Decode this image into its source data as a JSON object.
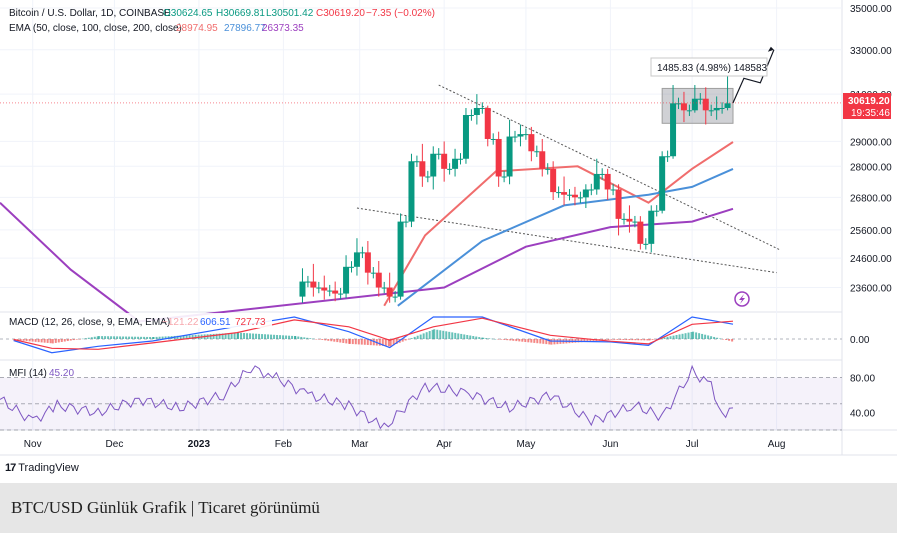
{
  "header": {
    "symbol_line": "Bitcoin / U.S. Dollar, 1D, COINBASE",
    "ohlc": {
      "o": "O30624.65",
      "h": "H30669.81",
      "l": "L30501.42",
      "c": "C30619.20",
      "chg": "−7.35 (−0.02%)"
    },
    "ema_label": "EMA (50, close, 100, close, 200, close)",
    "ema_values": [
      "28974.95",
      "27896.77",
      "26373.35"
    ]
  },
  "macd": {
    "label": "MACD (12, 26, close, 9, EMA, EMA)",
    "values": [
      "−121.22",
      "606.51",
      "727.73"
    ],
    "zero_label": "0.00"
  },
  "mfi": {
    "label": "MFI (14)",
    "value": "45.20",
    "levels": [
      "80.00",
      "40.00"
    ]
  },
  "price_axis": {
    "ticks": [
      "35000.00",
      "33000.00",
      "31000.00",
      "29000.00",
      "28000.00",
      "26800.00",
      "25600.00",
      "24600.00",
      "23600.00"
    ]
  },
  "last_price": {
    "price": "30619.20",
    "countdown": "19:35:46"
  },
  "range_box": {
    "label": "1485.83 (4.98%) 148583"
  },
  "time_axis": {
    "ticks": [
      "Nov",
      "Dec",
      "2023",
      "Feb",
      "Mar",
      "Apr",
      "May",
      "Jun",
      "Jul",
      "Aug"
    ]
  },
  "branding": {
    "logo_text": "TradingView"
  },
  "caption": "BTC/USD Günlük Grafik | Ticaret görünümü",
  "colors": {
    "up": "#089981",
    "down": "#f23645",
    "ema50": "#f06d6d",
    "ema100": "#4a90d9",
    "ema200": "#9c3fbf",
    "macd": "#2962ff",
    "signal": "#f23645",
    "mfi": "#7e57c2",
    "box": "#9e9e9e"
  },
  "chart_data": {
    "type": "candlestick",
    "title": "",
    "xlabel": "",
    "ylabel": "",
    "x_dates": [
      "2023-02-08",
      "2023-02-12",
      "2023-02-16",
      "2023-02-20",
      "2023-02-24",
      "2023-02-28",
      "2023-03-04",
      "2023-03-08",
      "2023-03-12",
      "2023-03-16",
      "2023-03-20",
      "2023-03-24",
      "2023-03-28",
      "2023-04-01",
      "2023-04-05",
      "2023-04-09",
      "2023-04-13",
      "2023-04-17",
      "2023-04-21",
      "2023-04-25",
      "2023-04-29",
      "2023-05-03",
      "2023-05-07",
      "2023-05-11",
      "2023-05-15",
      "2023-05-19",
      "2023-05-23",
      "2023-05-27",
      "2023-05-31",
      "2023-06-04",
      "2023-06-08",
      "2023-06-12",
      "2023-06-16",
      "2023-06-20",
      "2023-06-24",
      "2023-06-28",
      "2023-07-02",
      "2023-07-06",
      "2023-07-10",
      "2023-07-14"
    ],
    "candles": [
      {
        "o": 23300,
        "h": 24250,
        "l": 23100,
        "c": 23800
      },
      {
        "o": 23800,
        "h": 24400,
        "l": 23300,
        "c": 23600
      },
      {
        "o": 23600,
        "h": 24000,
        "l": 23200,
        "c": 23500
      },
      {
        "o": 23500,
        "h": 23800,
        "l": 23150,
        "c": 23400
      },
      {
        "o": 23400,
        "h": 24700,
        "l": 23250,
        "c": 24300
      },
      {
        "o": 24300,
        "h": 25300,
        "l": 24000,
        "c": 24800
      },
      {
        "o": 24800,
        "h": 25200,
        "l": 23700,
        "c": 24100
      },
      {
        "o": 24100,
        "h": 24500,
        "l": 23300,
        "c": 23600
      },
      {
        "o": 23600,
        "h": 24100,
        "l": 23100,
        "c": 23300
      },
      {
        "o": 23300,
        "h": 26200,
        "l": 23200,
        "c": 25900
      },
      {
        "o": 25900,
        "h": 28500,
        "l": 25700,
        "c": 28200
      },
      {
        "o": 28200,
        "h": 28900,
        "l": 27200,
        "c": 27600
      },
      {
        "o": 27600,
        "h": 28800,
        "l": 27100,
        "c": 28500
      },
      {
        "o": 28500,
        "h": 29000,
        "l": 27400,
        "c": 27900
      },
      {
        "o": 27900,
        "h": 28700,
        "l": 27600,
        "c": 28300
      },
      {
        "o": 28300,
        "h": 30400,
        "l": 28100,
        "c": 30100
      },
      {
        "o": 30100,
        "h": 31000,
        "l": 29700,
        "c": 30400
      },
      {
        "o": 30400,
        "h": 30500,
        "l": 28800,
        "c": 29100
      },
      {
        "o": 29100,
        "h": 29400,
        "l": 27200,
        "c": 27600
      },
      {
        "o": 27600,
        "h": 29900,
        "l": 27300,
        "c": 29200
      },
      {
        "o": 29200,
        "h": 29700,
        "l": 28800,
        "c": 29300
      },
      {
        "o": 29300,
        "h": 29600,
        "l": 28200,
        "c": 28600
      },
      {
        "o": 28600,
        "h": 29100,
        "l": 27600,
        "c": 27900
      },
      {
        "o": 27900,
        "h": 28200,
        "l": 26700,
        "c": 27000
      },
      {
        "o": 27000,
        "h": 27600,
        "l": 26500,
        "c": 26900
      },
      {
        "o": 26900,
        "h": 27200,
        "l": 26500,
        "c": 26800
      },
      {
        "o": 26800,
        "h": 27300,
        "l": 26400,
        "c": 27100
      },
      {
        "o": 27100,
        "h": 28300,
        "l": 26900,
        "c": 27700
      },
      {
        "o": 27700,
        "h": 27900,
        "l": 26700,
        "c": 27100
      },
      {
        "o": 27100,
        "h": 27300,
        "l": 25400,
        "c": 26000
      },
      {
        "o": 26000,
        "h": 26500,
        "l": 25500,
        "c": 25900
      },
      {
        "o": 25900,
        "h": 26100,
        "l": 24900,
        "c": 25100
      },
      {
        "o": 25100,
        "h": 26500,
        "l": 24800,
        "c": 26300
      },
      {
        "o": 26300,
        "h": 28600,
        "l": 26200,
        "c": 28400
      },
      {
        "o": 28400,
        "h": 31400,
        "l": 28300,
        "c": 30600
      },
      {
        "o": 30600,
        "h": 31100,
        "l": 29800,
        "c": 30300
      },
      {
        "o": 30300,
        "h": 31400,
        "l": 30200,
        "c": 30800
      },
      {
        "o": 30800,
        "h": 31300,
        "l": 29700,
        "c": 30300
      },
      {
        "o": 30300,
        "h": 30900,
        "l": 29900,
        "c": 30400
      },
      {
        "o": 30400,
        "h": 31800,
        "l": 30300,
        "c": 30600
      }
    ],
    "ema_series": [
      {
        "name": "EMA 50",
        "color": "#f06d6d",
        "points": [
          [
            "2023-03-10",
            23000
          ],
          [
            "2023-03-25",
            25400
          ],
          [
            "2023-04-20",
            27800
          ],
          [
            "2023-05-20",
            28000
          ],
          [
            "2023-06-15",
            26600
          ],
          [
            "2023-07-01",
            27900
          ],
          [
            "2023-07-16",
            28975
          ]
        ]
      },
      {
        "name": "EMA 100",
        "color": "#4a90d9",
        "points": [
          [
            "2023-03-15",
            23000
          ],
          [
            "2023-04-15",
            25200
          ],
          [
            "2023-05-15",
            26500
          ],
          [
            "2023-06-15",
            26900
          ],
          [
            "2023-07-01",
            27200
          ],
          [
            "2023-07-16",
            27897
          ]
        ]
      },
      {
        "name": "EMA 200",
        "color": "#9c3fbf",
        "points": [
          [
            "2022-10-20",
            26600
          ],
          [
            "2022-11-15",
            24200
          ],
          [
            "2022-12-10",
            22500
          ],
          [
            "2023-04-01",
            23600
          ],
          [
            "2023-05-01",
            25000
          ],
          [
            "2023-06-01",
            25700
          ],
          [
            "2023-07-01",
            25900
          ],
          [
            "2023-07-16",
            26373
          ]
        ]
      }
    ],
    "trendlines": [
      {
        "from": [
          "2023-03-30",
          31400
        ],
        "to": [
          "2023-08-02",
          24900
        ]
      },
      {
        "from": [
          "2023-02-28",
          26400
        ],
        "to": [
          "2023-08-01",
          24100
        ]
      }
    ],
    "range_box": {
      "from_date": "2023-06-20",
      "to_date": "2023-07-16",
      "low": 29750,
      "high": 31250
    },
    "projection": [
      [
        "2023-07-16",
        30620
      ],
      [
        "2023-07-20",
        31700
      ],
      [
        "2023-07-26",
        31500
      ],
      [
        "2023-07-31",
        33000
      ]
    ],
    "ylim": [
      22800,
      35400
    ],
    "xlim": [
      "2022-10-20",
      "2023-08-25"
    ],
    "log_scale": true,
    "macd": [
      {
        "d": "2022-10-25",
        "macd": -60,
        "signal": -20
      },
      {
        "d": "2022-11-08",
        "macd": -560,
        "signal": -380
      },
      {
        "d": "2022-11-25",
        "macd": -300,
        "signal": -420
      },
      {
        "d": "2022-12-15",
        "macd": -80,
        "signal": -160
      },
      {
        "d": "2023-01-15",
        "macd": 520,
        "signal": 260
      },
      {
        "d": "2023-02-05",
        "macd": 900,
        "signal": 780
      },
      {
        "d": "2023-02-25",
        "macd": 300,
        "signal": 500
      },
      {
        "d": "2023-03-12",
        "macd": -350,
        "signal": -50
      },
      {
        "d": "2023-03-28",
        "macd": 900,
        "signal": 500
      },
      {
        "d": "2023-04-15",
        "macd": 900,
        "signal": 850
      },
      {
        "d": "2023-05-10",
        "macd": -80,
        "signal": 150
      },
      {
        "d": "2023-06-01",
        "macd": -120,
        "signal": -90
      },
      {
        "d": "2023-06-15",
        "macd": -260,
        "signal": -200
      },
      {
        "d": "2023-07-01",
        "macd": 900,
        "signal": 600
      },
      {
        "d": "2023-07-16",
        "macd": 606,
        "signal": 728
      }
    ],
    "mfi_series": [
      [
        "2022-10-20",
        55
      ],
      [
        "2022-11-01",
        30
      ],
      [
        "2022-11-10",
        48
      ],
      [
        "2022-11-25",
        40
      ],
      [
        "2022-12-10",
        55
      ],
      [
        "2022-12-25",
        45
      ],
      [
        "2023-01-10",
        60
      ],
      [
        "2023-01-20",
        91
      ],
      [
        "2023-01-28",
        82
      ],
      [
        "2023-02-10",
        60
      ],
      [
        "2023-02-25",
        48
      ],
      [
        "2023-03-10",
        22
      ],
      [
        "2023-03-25",
        70
      ],
      [
        "2023-04-10",
        62
      ],
      [
        "2023-04-25",
        45
      ],
      [
        "2023-05-10",
        60
      ],
      [
        "2023-05-25",
        30
      ],
      [
        "2023-06-10",
        48
      ],
      [
        "2023-06-20",
        35
      ],
      [
        "2023-07-01",
        87
      ],
      [
        "2023-07-08",
        70
      ],
      [
        "2023-07-12",
        38
      ],
      [
        "2023-07-16",
        45.2
      ]
    ],
    "mfi_ylim": [
      20,
      100
    ]
  }
}
